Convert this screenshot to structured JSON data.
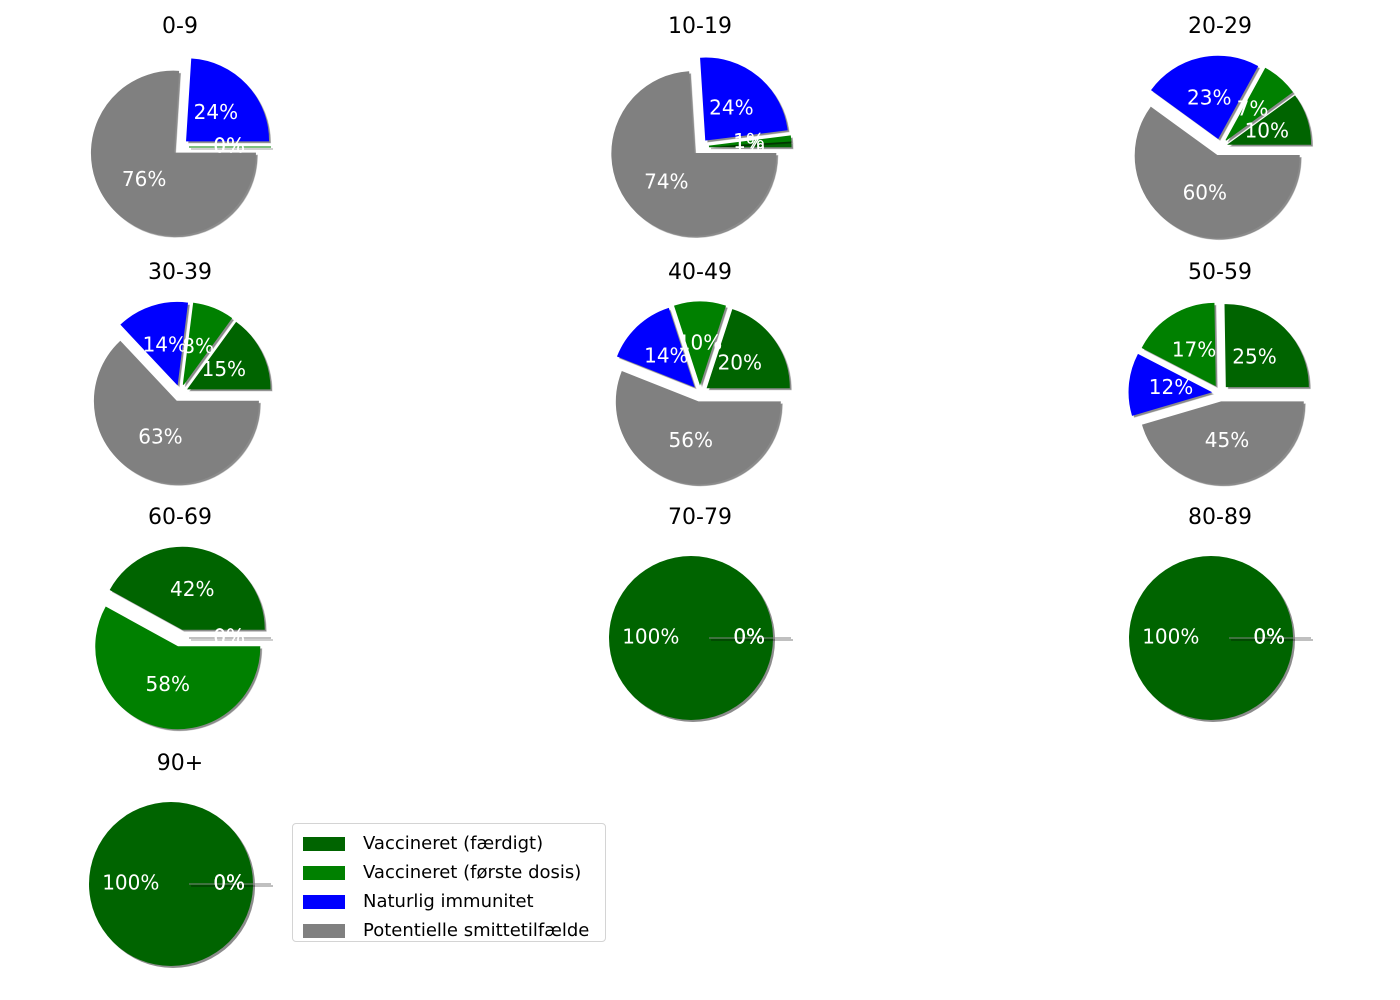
{
  "chart_data": {
    "type": "pie",
    "categories": [
      "Vaccineret (færdigt)",
      "Vaccineret (første dosis)",
      "Naturlig immunitet",
      "Potentielle smittetilfælde"
    ],
    "colors": [
      "#006400",
      "#008000",
      "#0000ff",
      "#808080"
    ],
    "legend_position": "right of last subplot",
    "charts": [
      {
        "title": "0-9",
        "values": [
          0,
          0,
          24,
          76
        ],
        "labels": [
          "0%",
          "0%",
          "24%",
          "76%"
        ]
      },
      {
        "title": "10-19",
        "values": [
          1,
          1,
          24,
          74
        ],
        "labels": [
          "1%",
          "1%",
          "24%",
          "74%"
        ]
      },
      {
        "title": "20-29",
        "values": [
          10,
          7,
          23,
          60
        ],
        "labels": [
          "10%",
          "7%",
          "23%",
          "60%"
        ]
      },
      {
        "title": "30-39",
        "values": [
          15,
          8,
          14,
          63
        ],
        "labels": [
          "15%",
          "8%",
          "14%",
          "63%"
        ]
      },
      {
        "title": "40-49",
        "values": [
          20,
          10,
          14,
          56
        ],
        "labels": [
          "20%",
          "10%",
          "14%",
          "56%"
        ]
      },
      {
        "title": "50-59",
        "values": [
          25,
          17,
          12,
          45
        ],
        "labels": [
          "25%",
          "17%",
          "12%",
          "45%"
        ]
      },
      {
        "title": "60-69",
        "values": [
          42,
          58,
          0,
          0
        ],
        "labels": [
          "42%",
          "58%",
          "0%",
          "0%"
        ]
      },
      {
        "title": "70-79",
        "values": [
          100,
          0,
          0,
          0
        ],
        "labels": [
          "100%",
          "0%",
          "0%",
          "0%"
        ]
      },
      {
        "title": "80-89",
        "values": [
          100,
          0,
          0,
          0
        ],
        "labels": [
          "100%",
          "0%",
          "0%",
          "0%"
        ]
      },
      {
        "title": "90+",
        "values": [
          100,
          0,
          0,
          0
        ],
        "labels": [
          "100%",
          "0%",
          "0%",
          "0%"
        ]
      }
    ]
  }
}
